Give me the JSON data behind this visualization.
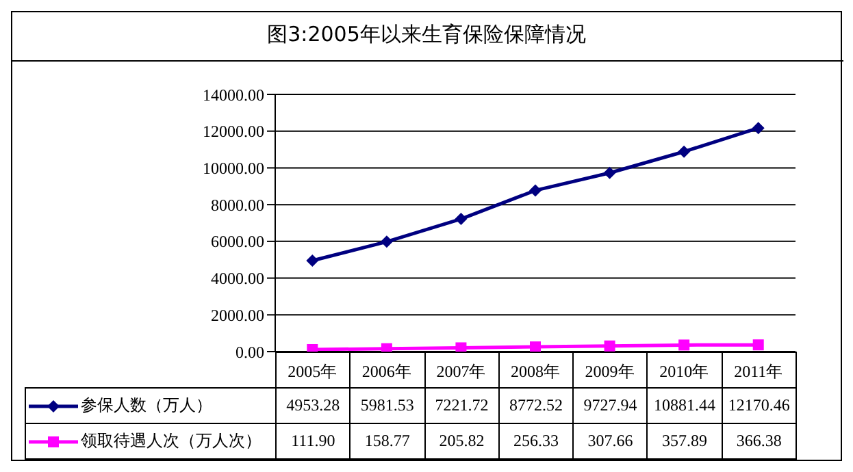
{
  "chart_data": {
    "type": "line",
    "title": "图3:2005年以来生育保险保障情况",
    "categories": [
      "2005年",
      "2006年",
      "2007年",
      "2008年",
      "2009年",
      "2010年",
      "2011年"
    ],
    "series": [
      {
        "name": "参保人数（万人）",
        "color": "#000080",
        "marker": "diamond",
        "values": [
          4953.28,
          5981.53,
          7221.72,
          8772.52,
          9727.94,
          10881.44,
          12170.46
        ],
        "value_labels": [
          "4953.28",
          "5981.53",
          "7221.72",
          "8772.52",
          "9727.94",
          "10881.44",
          "12170.46"
        ]
      },
      {
        "name": "领取待遇人次（万人次）",
        "color": "#ff00ff",
        "marker": "square",
        "values": [
          111.9,
          158.77,
          205.82,
          256.33,
          307.66,
          357.89,
          366.38
        ],
        "value_labels": [
          "111.90",
          "158.77",
          "205.82",
          "256.33",
          "307.66",
          "357.89",
          "366.38"
        ]
      }
    ],
    "ylim": [
      0,
      14000
    ],
    "yticks": [
      {
        "value": 0,
        "label": "0.00"
      },
      {
        "value": 2000,
        "label": "2000.00"
      },
      {
        "value": 4000,
        "label": "4000.00"
      },
      {
        "value": 6000,
        "label": "6000.00"
      },
      {
        "value": 8000,
        "label": "8000.00"
      },
      {
        "value": 10000,
        "label": "10000.00"
      },
      {
        "value": 12000,
        "label": "12000.00"
      },
      {
        "value": 14000,
        "label": "14000.00"
      }
    ],
    "grid": "y",
    "legend": "bottom"
  }
}
